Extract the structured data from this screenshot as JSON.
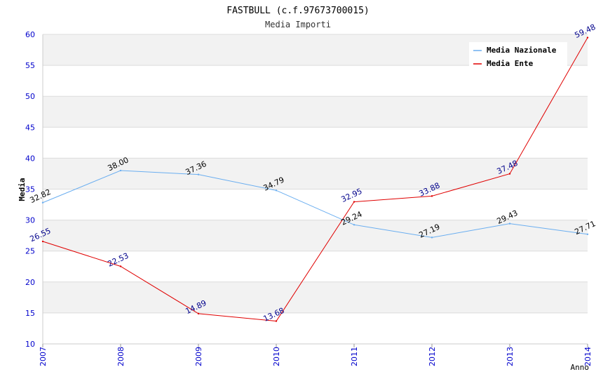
{
  "chart_data": {
    "type": "line",
    "title": "FASTBULL (c.f.97673700015)",
    "subtitle": "Media Importi",
    "xlabel": "Anno",
    "ylabel": "Media",
    "categories": [
      "2007",
      "2008",
      "2009",
      "2010",
      "2011",
      "2012",
      "2013",
      "2014"
    ],
    "ylim": [
      10,
      60
    ],
    "yticks": [
      10,
      15,
      20,
      25,
      30,
      35,
      40,
      45,
      50,
      55,
      60
    ],
    "grid": true,
    "legend_position": "top-right",
    "series": [
      {
        "name": "Media Nazionale",
        "color": "#6aaef0",
        "label_color": "#000000",
        "values": [
          32.82,
          38.0,
          37.36,
          34.79,
          29.24,
          27.19,
          29.43,
          27.71
        ],
        "labels": [
          "32.82",
          "38.00",
          "37.36",
          "34.79",
          "29.24",
          "27.19",
          "29.43",
          "27.71"
        ]
      },
      {
        "name": "Media Ente",
        "color": "#e00000",
        "label_color": "#00008b",
        "values": [
          26.55,
          22.53,
          14.89,
          13.68,
          32.95,
          33.88,
          37.48,
          59.48
        ],
        "labels": [
          "26.55",
          "22.53",
          "14.89",
          "13.68",
          "32.95",
          "33.88",
          "37.48",
          "59.48"
        ]
      }
    ]
  }
}
